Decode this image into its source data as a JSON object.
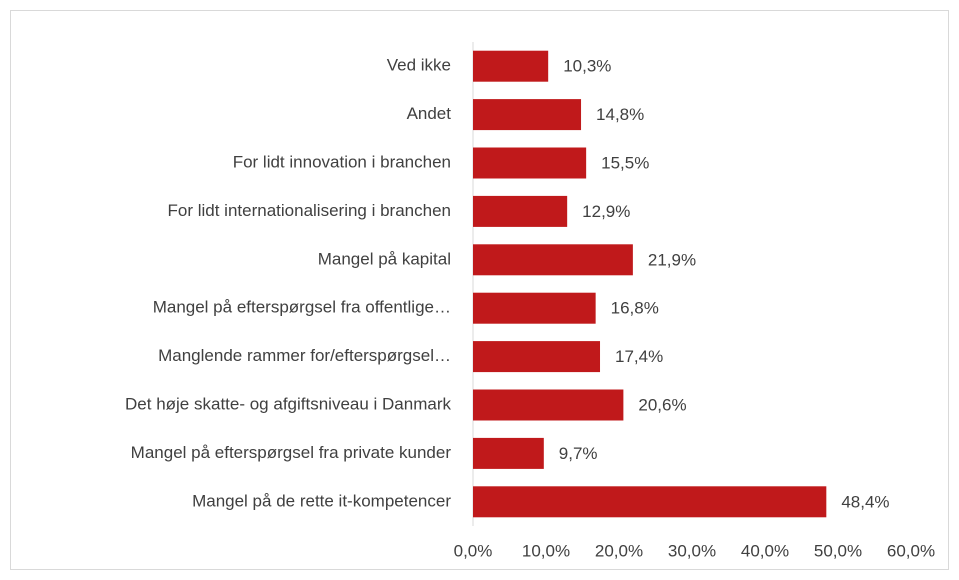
{
  "chart_data": {
    "type": "hbar",
    "categories": [
      "Ved ikke",
      "Andet",
      "For lidt innovation i branchen",
      "For lidt internationalisering i branchen",
      "Mangel på kapital",
      "Mangel på efterspørgsel fra offentlige…",
      "Manglende rammer for/efterspørgsel…",
      "Det høje skatte- og afgiftsniveau i Danmark",
      "Mangel på efterspørgsel fra private kunder",
      "Mangel på de rette it-kompetencer"
    ],
    "values": [
      10.3,
      14.8,
      15.5,
      12.9,
      21.9,
      16.8,
      17.4,
      20.6,
      9.7,
      48.4
    ],
    "value_labels": [
      "10,3%",
      "14,8%",
      "15,5%",
      "12,9%",
      "21,9%",
      "16,8%",
      "17,4%",
      "20,6%",
      "9,7%",
      "48,4%"
    ],
    "color": "#c0191b",
    "xlim": [
      0,
      60
    ],
    "xticks": [
      {
        "value": 0,
        "label": "0,0%"
      },
      {
        "value": 10,
        "label": "10,0%"
      },
      {
        "value": 20,
        "label": "20,0%"
      },
      {
        "value": 30,
        "label": "30,0%"
      },
      {
        "value": 40,
        "label": "40,0%"
      },
      {
        "value": 50,
        "label": "50,0%"
      },
      {
        "value": 60,
        "label": "60,0%"
      }
    ],
    "grid": false
  }
}
